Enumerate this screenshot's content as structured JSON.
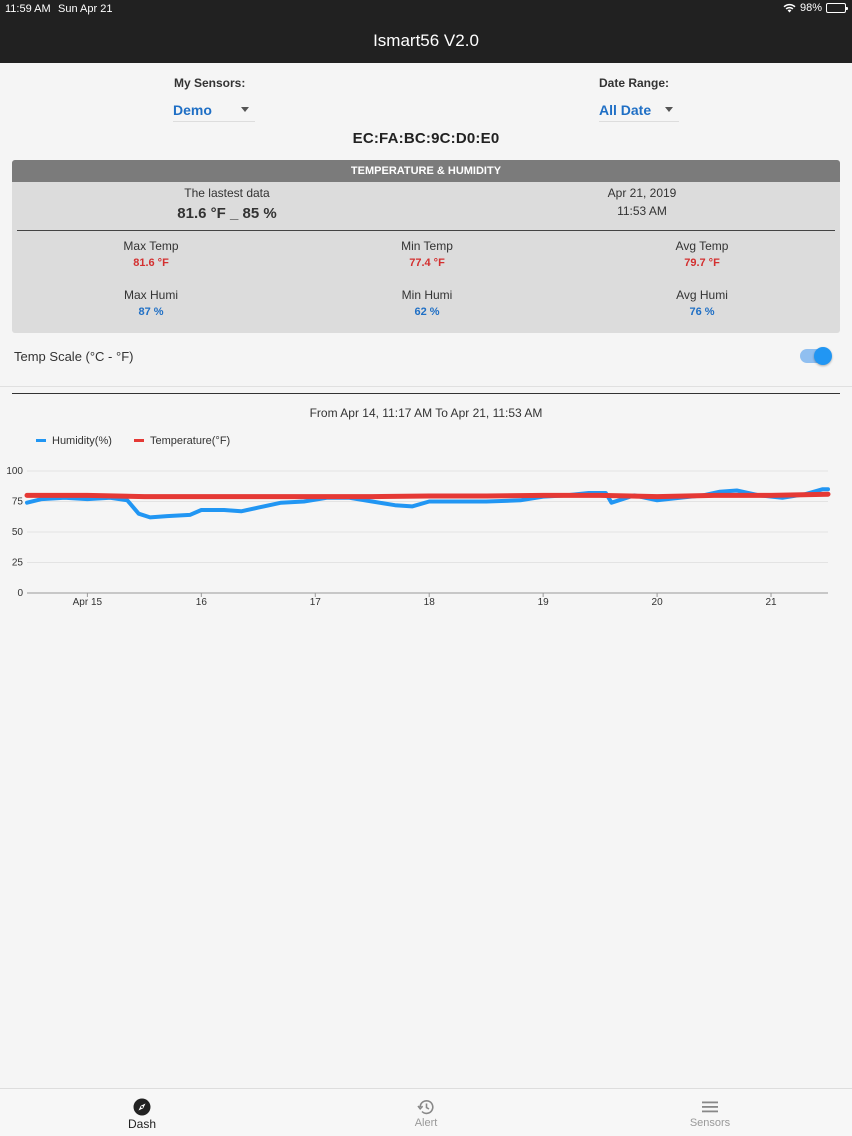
{
  "status_bar": {
    "time": "11:59 AM",
    "date": "Sun Apr 21",
    "battery": "98%",
    "battery_level": 0.98
  },
  "nav": {
    "title": "Ismart56 V2.0"
  },
  "sensors": {
    "label": "My Sensors:",
    "value": "Demo"
  },
  "date_range": {
    "label": "Date Range:",
    "value": "All Date"
  },
  "device": {
    "mac": "EC:FA:BC:9C:D0:E0"
  },
  "card": {
    "title": "TEMPERATURE & HUMIDITY",
    "latest_label": "The lastest data",
    "latest_value": "81.6 °F _ 85 %",
    "latest_date": "Apr 21, 2019",
    "latest_time": "11:53 AM",
    "max_temp_label": "Max Temp",
    "max_temp": "81.6 °F",
    "min_temp_label": "Min Temp",
    "min_temp": "77.4 °F",
    "avg_temp_label": "Avg Temp",
    "avg_temp": "79.7 °F",
    "max_humi_label": "Max Humi",
    "max_humi": "87 %",
    "min_humi_label": "Min Humi",
    "min_humi": "62 %",
    "avg_humi_label": "Avg Humi",
    "avg_humi": "76 %"
  },
  "temp_scale": {
    "label": "Temp Scale (°C - °F)",
    "on": true
  },
  "chart_range_text": "From Apr 14, 11:17 AM To Apr 21, 11:53 AM",
  "colors": {
    "humidity": "#2196f3",
    "temperature": "#e53935",
    "accent": "#1f6fc5"
  },
  "chart_data": {
    "type": "line",
    "legend_position": "top-left",
    "grid": true,
    "ylim": [
      0,
      100
    ],
    "yticks": [
      0,
      25,
      50,
      75,
      100
    ],
    "xlim": [
      14.47,
      21.5
    ],
    "xtick_values": [
      15,
      16,
      17,
      18,
      19,
      20,
      21
    ],
    "xtick_labels": [
      "Apr 15",
      "16",
      "17",
      "18",
      "19",
      "20",
      "21"
    ],
    "series": [
      {
        "name": "Humidity(%)",
        "x": [
          14.47,
          14.6,
          14.8,
          15.0,
          15.2,
          15.35,
          15.45,
          15.55,
          15.7,
          15.9,
          16.0,
          16.2,
          16.35,
          16.5,
          16.7,
          16.9,
          17.1,
          17.3,
          17.5,
          17.7,
          17.85,
          18.0,
          18.2,
          18.5,
          18.8,
          19.0,
          19.2,
          19.4,
          19.55,
          19.6,
          19.8,
          20.0,
          20.2,
          20.4,
          20.55,
          20.7,
          20.9,
          21.1,
          21.3,
          21.45,
          21.5
        ],
        "y": [
          74,
          77,
          78,
          77,
          78,
          76,
          65,
          62,
          63,
          64,
          68,
          68,
          67,
          70,
          74,
          75,
          78,
          78,
          75,
          72,
          71,
          75,
          75,
          75,
          76,
          79,
          80,
          82,
          82,
          74,
          80,
          76,
          78,
          80,
          83,
          84,
          80,
          78,
          81,
          85,
          85
        ]
      },
      {
        "name": "Temperature(°F)",
        "x": [
          14.47,
          15.0,
          15.5,
          16.0,
          16.5,
          17.0,
          17.5,
          18.0,
          18.5,
          19.0,
          19.5,
          20.0,
          20.5,
          21.0,
          21.5
        ],
        "y": [
          80,
          80,
          79,
          79,
          79,
          79,
          79,
          79.5,
          79.5,
          80,
          80,
          79,
          80,
          80,
          81
        ]
      }
    ]
  },
  "tabs": [
    {
      "label": "Dash",
      "icon": "compass-icon",
      "active": true
    },
    {
      "label": "Alert",
      "icon": "history-icon",
      "active": false
    },
    {
      "label": "Sensors",
      "icon": "list-icon",
      "active": false
    }
  ]
}
